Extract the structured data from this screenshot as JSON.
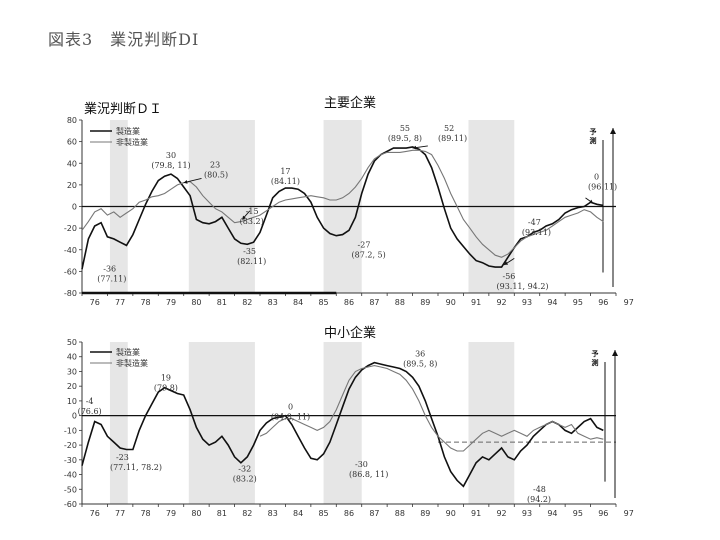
{
  "figure_title": "図表3　業況判断DI",
  "chart_data": [
    {
      "type": "line",
      "title": "主要企業",
      "ylabel": "業況判断ＤＩ",
      "ylim": [
        -80,
        80
      ],
      "yticks": [
        80,
        60,
        40,
        20,
        0,
        -20,
        -40,
        -60,
        -80
      ],
      "xlim": [
        1976,
        1997
      ],
      "xtick_labels": [
        "76",
        "77",
        "78",
        "79",
        "80",
        "81",
        "82",
        "83",
        "84",
        "85",
        "86",
        "87",
        "88",
        "89",
        "90",
        "91",
        "92",
        "93",
        "94",
        "95",
        "96",
        "97"
      ],
      "shaded_periods": [
        [
          1977.1,
          1977.8
        ],
        [
          1980.2,
          1982.8
        ],
        [
          1985.5,
          1987.0
        ],
        [
          1991.2,
          1993.0
        ]
      ],
      "forecast_label": "予測",
      "legend": {
        "placement": "top-left",
        "entries": [
          "製造業",
          "非製造業"
        ]
      },
      "series": [
        {
          "name": "製造業",
          "style": "solid",
          "color": "#111111",
          "x": [
            1976.0,
            1976.25,
            1976.5,
            1976.75,
            1977.0,
            1977.25,
            1977.5,
            1977.75,
            1978.0,
            1978.25,
            1978.5,
            1978.75,
            1979.0,
            1979.25,
            1979.5,
            1979.75,
            1980.0,
            1980.25,
            1980.5,
            1980.75,
            1981.0,
            1981.25,
            1981.5,
            1981.75,
            1982.0,
            1982.25,
            1982.5,
            1982.75,
            1983.0,
            1983.25,
            1983.5,
            1983.75,
            1984.0,
            1984.25,
            1984.5,
            1984.75,
            1985.0,
            1985.25,
            1985.5,
            1985.75,
            1986.0,
            1986.25,
            1986.5,
            1986.75,
            1987.0,
            1987.25,
            1987.5,
            1987.75,
            1988.0,
            1988.25,
            1988.5,
            1988.75,
            1989.0,
            1989.25,
            1989.5,
            1989.75,
            1990.0,
            1990.25,
            1990.5,
            1990.75,
            1991.0,
            1991.25,
            1991.5,
            1991.75,
            1992.0,
            1992.25,
            1992.5,
            1992.75,
            1993.0,
            1993.25,
            1993.5,
            1993.75,
            1994.0,
            1994.25,
            1994.5,
            1994.75,
            1995.0,
            1995.25,
            1995.5,
            1995.75,
            1996.0,
            1996.25,
            1996.5
          ],
          "y": [
            -58,
            -30,
            -18,
            -15,
            -28,
            -30,
            -33,
            -36,
            -26,
            -12,
            2,
            14,
            24,
            28,
            30,
            26,
            18,
            10,
            -12,
            -15,
            -16,
            -14,
            -10,
            -20,
            -30,
            -34,
            -35,
            -33,
            -24,
            -8,
            8,
            14,
            17,
            17,
            16,
            12,
            4,
            -10,
            -20,
            -25,
            -27,
            -26,
            -22,
            -10,
            12,
            30,
            42,
            48,
            51,
            54,
            54,
            54,
            55,
            53,
            48,
            36,
            18,
            -2,
            -20,
            -30,
            -37,
            -44,
            -50,
            -52,
            -55,
            -56,
            -56,
            -47,
            -38,
            -30,
            -28,
            -24,
            -22,
            -18,
            -16,
            -12,
            -6,
            -3,
            -1,
            0,
            4,
            2,
            1
          ]
        },
        {
          "name": "非製造業",
          "style": "solid",
          "color": "#777777",
          "x": [
            1976.0,
            1976.25,
            1976.5,
            1976.75,
            1977.0,
            1977.25,
            1977.5,
            1977.75,
            1978.0,
            1978.25,
            1978.5,
            1978.75,
            1979.0,
            1979.25,
            1979.5,
            1979.75,
            1980.0,
            1980.25,
            1980.5,
            1980.75,
            1981.0,
            1981.25,
            1981.5,
            1981.75,
            1982.0,
            1982.25,
            1982.5,
            1982.75,
            1983.0,
            1983.25,
            1983.5,
            1983.75,
            1984.0,
            1984.25,
            1984.5,
            1984.75,
            1985.0,
            1985.25,
            1985.5,
            1985.75,
            1986.0,
            1986.25,
            1986.5,
            1986.75,
            1987.0,
            1987.25,
            1987.5,
            1987.75,
            1988.0,
            1988.25,
            1988.5,
            1988.75,
            1989.0,
            1989.25,
            1989.5,
            1989.75,
            1990.0,
            1990.25,
            1990.5,
            1990.75,
            1991.0,
            1991.25,
            1991.5,
            1991.75,
            1992.0,
            1992.25,
            1992.5,
            1992.75,
            1993.0,
            1993.25,
            1993.5,
            1993.75,
            1994.0,
            1994.25,
            1994.5,
            1994.75,
            1995.0,
            1995.25,
            1995.5,
            1995.75,
            1996.0,
            1996.25,
            1996.5
          ],
          "y": [
            -22,
            -14,
            -5,
            -2,
            -8,
            -5,
            -10,
            -6,
            -2,
            4,
            6,
            9,
            10,
            12,
            16,
            20,
            22,
            23,
            18,
            10,
            4,
            -2,
            -5,
            -10,
            -15,
            -14,
            -12,
            -10,
            -8,
            -4,
            0,
            4,
            6,
            7,
            8,
            9,
            10,
            9,
            8,
            6,
            6,
            8,
            12,
            18,
            26,
            36,
            44,
            48,
            50,
            50,
            50,
            51,
            52,
            52,
            51,
            48,
            38,
            26,
            12,
            0,
            -12,
            -20,
            -28,
            -35,
            -40,
            -45,
            -47,
            -44,
            -38,
            -32,
            -28,
            -26,
            -24,
            -22,
            -18,
            -14,
            -10,
            -8,
            -6,
            -3,
            -5,
            -10,
            -14
          ]
        }
      ],
      "annotations": [
        {
          "value": "-36",
          "date": "(77.11)"
        },
        {
          "value": "30",
          "date": "(79.8, 11)"
        },
        {
          "value": "23",
          "date": "(80.5)"
        },
        {
          "value": "-15",
          "date": "(83.2)"
        },
        {
          "value": "-35",
          "date": "(82.11)"
        },
        {
          "value": "17",
          "date": "(84.11)"
        },
        {
          "value": "-27",
          "date": "(87.2, 5)"
        },
        {
          "value": "55",
          "date": "(89.5, 8)"
        },
        {
          "value": "52",
          "date": "(89.11)"
        },
        {
          "value": "-47",
          "date": "(93.11)"
        },
        {
          "value": "-56",
          "date": "(93.11, 94.2)"
        },
        {
          "value": "0",
          "date": "(96.11)"
        }
      ]
    },
    {
      "type": "line",
      "title": "中小企業",
      "ylim": [
        -60,
        50
      ],
      "yticks": [
        50,
        40,
        30,
        20,
        10,
        0,
        -10,
        -20,
        -30,
        -40,
        -50,
        -60
      ],
      "xlim": [
        1976,
        1997
      ],
      "xtick_labels": [
        "76",
        "77",
        "78",
        "79",
        "80",
        "81",
        "82",
        "83",
        "84",
        "85",
        "86",
        "87",
        "88",
        "89",
        "90",
        "91",
        "92",
        "93",
        "94",
        "95",
        "96",
        "97"
      ],
      "shaded_periods": [
        [
          1977.1,
          1977.8
        ],
        [
          1980.2,
          1982.8
        ],
        [
          1985.5,
          1987.0
        ],
        [
          1991.2,
          1993.0
        ]
      ],
      "forecast_label": "予測",
      "reference_line_y": -18,
      "legend": {
        "placement": "top-left",
        "entries": [
          "製造業",
          "非製造業"
        ]
      },
      "series": [
        {
          "name": "製造業",
          "style": "solid",
          "color": "#111111",
          "x": [
            1976.0,
            1976.25,
            1976.5,
            1976.75,
            1977.0,
            1977.25,
            1977.5,
            1977.75,
            1978.0,
            1978.25,
            1978.5,
            1978.75,
            1979.0,
            1979.25,
            1979.5,
            1979.75,
            1980.0,
            1980.25,
            1980.5,
            1980.75,
            1981.0,
            1981.25,
            1981.5,
            1981.75,
            1982.0,
            1982.25,
            1982.5,
            1982.75,
            1983.0,
            1983.25,
            1983.5,
            1983.75,
            1984.0,
            1984.25,
            1984.5,
            1984.75,
            1985.0,
            1985.25,
            1985.5,
            1985.75,
            1986.0,
            1986.25,
            1986.5,
            1986.75,
            1987.0,
            1987.25,
            1987.5,
            1987.75,
            1988.0,
            1988.25,
            1988.5,
            1988.75,
            1989.0,
            1989.25,
            1989.5,
            1989.75,
            1990.0,
            1990.25,
            1990.5,
            1990.75,
            1991.0,
            1991.25,
            1991.5,
            1991.75,
            1992.0,
            1992.25,
            1992.5,
            1992.75,
            1993.0,
            1993.25,
            1993.5,
            1993.75,
            1994.0,
            1994.25,
            1994.5,
            1994.75,
            1995.0,
            1995.25,
            1995.5,
            1995.75,
            1996.0,
            1996.25,
            1996.5
          ],
          "y": [
            -34,
            -18,
            -4,
            -6,
            -14,
            -18,
            -22,
            -23,
            -23,
            -10,
            0,
            8,
            16,
            19,
            17,
            15,
            14,
            4,
            -8,
            -16,
            -20,
            -18,
            -14,
            -20,
            -28,
            -32,
            -28,
            -20,
            -10,
            -5,
            -2,
            -1,
            0,
            -6,
            -14,
            -22,
            -29,
            -30,
            -26,
            -18,
            -6,
            6,
            18,
            26,
            31,
            34,
            36,
            35,
            34,
            33,
            32,
            30,
            26,
            20,
            10,
            -2,
            -14,
            -28,
            -38,
            -44,
            -48,
            -40,
            -32,
            -28,
            -30,
            -26,
            -22,
            -28,
            -30,
            -24,
            -20,
            -14,
            -10,
            -6,
            -4,
            -6,
            -10,
            -12,
            -8,
            -4,
            -2,
            -8,
            -10
          ]
        },
        {
          "name": "非製造業",
          "style": "solid",
          "color": "#777777",
          "x": [
            1983.0,
            1983.25,
            1983.5,
            1983.75,
            1984.0,
            1984.25,
            1984.5,
            1984.75,
            1985.0,
            1985.25,
            1985.5,
            1985.75,
            1986.0,
            1986.25,
            1986.5,
            1986.75,
            1987.0,
            1987.25,
            1987.5,
            1987.75,
            1988.0,
            1988.25,
            1988.5,
            1988.75,
            1989.0,
            1989.25,
            1989.5,
            1989.75,
            1990.0,
            1990.25,
            1990.5,
            1990.75,
            1991.0,
            1991.25,
            1991.5,
            1991.75,
            1992.0,
            1992.25,
            1992.5,
            1992.75,
            1993.0,
            1993.25,
            1993.5,
            1993.75,
            1994.0,
            1994.25,
            1994.5,
            1994.75,
            1995.0,
            1995.25,
            1995.5,
            1995.75,
            1996.0,
            1996.25,
            1996.5
          ],
          "y": [
            -14,
            -12,
            -8,
            -4,
            -2,
            -2,
            -4,
            -6,
            -8,
            -10,
            -8,
            -4,
            4,
            14,
            24,
            30,
            32,
            33,
            34,
            33,
            32,
            30,
            28,
            24,
            18,
            10,
            0,
            -8,
            -14,
            -18,
            -22,
            -24,
            -24,
            -20,
            -16,
            -12,
            -10,
            -12,
            -14,
            -12,
            -10,
            -12,
            -14,
            -10,
            -8,
            -6,
            -4,
            -6,
            -8,
            -6,
            -12,
            -14,
            -16,
            -15,
            -16
          ]
        }
      ],
      "annotations": [
        {
          "value": "-4",
          "date": "(76.6)"
        },
        {
          "value": "19",
          "date": "(79.8)"
        },
        {
          "value": "-23",
          "date": "(77.11, 78.2)"
        },
        {
          "value": "0",
          "date": "(84.8, 11)"
        },
        {
          "value": "-32",
          "date": "(83.2)"
        },
        {
          "value": "36",
          "date": "(89.5, 8)"
        },
        {
          "value": "-30",
          "date": "(86.8, 11)"
        },
        {
          "value": "-48",
          "date": "(94.2)"
        }
      ]
    }
  ]
}
